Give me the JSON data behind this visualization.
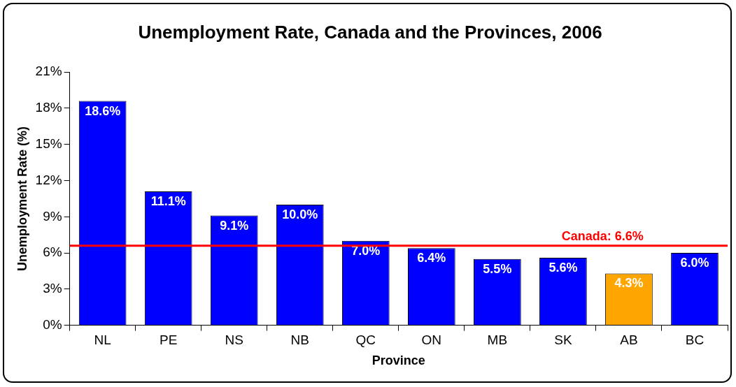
{
  "chart_data": {
    "type": "bar",
    "title": "Unemployment Rate, Canada and the Provinces, 2006",
    "xlabel": "Province",
    "ylabel": "Unemployment Rate (%)",
    "categories": [
      "NL",
      "PE",
      "NS",
      "NB",
      "QC",
      "ON",
      "MB",
      "SK",
      "AB",
      "BC"
    ],
    "values": [
      18.6,
      11.1,
      9.1,
      10.0,
      7.0,
      6.4,
      5.5,
      5.6,
      4.3,
      6.0
    ],
    "colors": [
      "#0000ff",
      "#0000ff",
      "#0000ff",
      "#0000ff",
      "#0000ff",
      "#0000ff",
      "#0000ff",
      "#0000ff",
      "#ffa500",
      "#0000ff"
    ],
    "value_labels": [
      "18.6%",
      "11.1%",
      "9.1%",
      "10.0%",
      "7.0%",
      "6.4%",
      "5.5%",
      "5.6%",
      "4.3%",
      "6.0%"
    ],
    "ylim": [
      0,
      21
    ],
    "yticks": [
      {
        "value": 0,
        "label": "0%"
      },
      {
        "value": 3,
        "label": "3%"
      },
      {
        "value": 6,
        "label": "6%"
      },
      {
        "value": 9,
        "label": "9%"
      },
      {
        "value": 12,
        "label": "12%"
      },
      {
        "value": 15,
        "label": "15%"
      },
      {
        "value": 18,
        "label": "18%"
      },
      {
        "value": 21,
        "label": "21%"
      }
    ],
    "ref_lines": [
      {
        "axis": "y",
        "value": 6.6,
        "label": "Canada: 6.6%",
        "color": "#ff0000"
      }
    ],
    "grid": false,
    "legend": false
  }
}
